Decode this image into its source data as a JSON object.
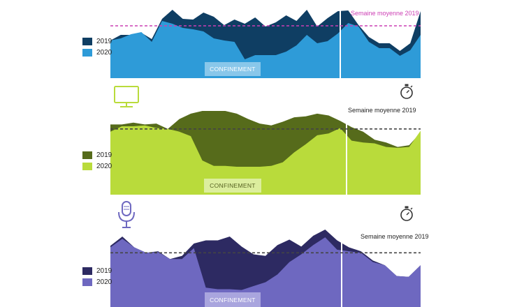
{
  "colors": {
    "panel1_2019": "#0f3e63",
    "panel1_2020": "#2e9bd8",
    "panel1_conf_bg": "#89c7ea",
    "panel1_line": "#cc3fb4",
    "panel2_2019": "#566b1b",
    "panel2_2020": "#b9db3b",
    "panel2_conf_bg": "#dcee9e",
    "panel2_line": "#444444",
    "panel3_2019": "#2d2a62",
    "panel3_2020": "#6e68c0",
    "panel3_conf_bg": "#a9a5de",
    "panel3_line": "#444444",
    "divider": "#ffffff"
  },
  "icons": {
    "tv": "tv-icon",
    "stopwatch": "stopwatch-icon",
    "microphone": "microphone-icon"
  },
  "chart_data": [
    {
      "type": "area",
      "legend": [
        "2019",
        "2020"
      ],
      "average_label": "Semaine moyenne 2019",
      "period_label": "CONFINEMENT",
      "ylim": [
        0,
        100
      ],
      "average": 75,
      "series": [
        {
          "name": "2019",
          "values": [
            54,
            62,
            62,
            65,
            56,
            85,
            98,
            85,
            84,
            94,
            88,
            76,
            84,
            78,
            87,
            74,
            80,
            90,
            82,
            98,
            74,
            86,
            96,
            97,
            76,
            59,
            50,
            50,
            39,
            50,
            96
          ]
        },
        {
          "name": "2020",
          "values": [
            54,
            57,
            63,
            66,
            52,
            82,
            78,
            72,
            70,
            67,
            57,
            54,
            52,
            27,
            33,
            33,
            33,
            38,
            47,
            62,
            50,
            53,
            64,
            79,
            74,
            52,
            43,
            43,
            32,
            40,
            62
          ]
        }
      ]
    },
    {
      "type": "area",
      "legend": [
        "2019",
        "2020"
      ],
      "average_label": "Semaine moyenne 2019",
      "period_label": "CONFINEMENT",
      "ylim": [
        0,
        100
      ],
      "average": 73,
      "series": [
        {
          "name": "2019",
          "values": [
            78,
            78,
            80,
            78,
            79,
            73,
            84,
            90,
            93,
            93,
            93,
            90,
            84,
            79,
            77,
            81,
            86,
            87,
            90,
            88,
            82,
            75,
            70,
            61,
            58,
            53,
            55,
            69
          ]
        },
        {
          "name": "2020",
          "values": [
            70,
            76,
            76,
            77,
            74,
            73,
            70,
            65,
            38,
            32,
            32,
            31,
            31,
            31,
            32,
            36,
            47,
            56,
            66,
            68,
            74,
            60,
            58,
            57,
            53,
            52,
            53,
            71
          ]
        }
      ]
    },
    {
      "type": "area",
      "legend": [
        "2019",
        "2020"
      ],
      "average_label": "Semaine moyenne 2019",
      "period_label": "CONFINEMENT",
      "ylim": [
        0,
        100
      ],
      "average": 70,
      "series": [
        {
          "name": "2019",
          "values": [
            79,
            91,
            77,
            70,
            72,
            62,
            66,
            82,
            86,
            86,
            91,
            78,
            68,
            66,
            80,
            87,
            78,
            92,
            100,
            86,
            77,
            72,
            60,
            54,
            40,
            39,
            54
          ]
        },
        {
          "name": "2020",
          "values": [
            77,
            88,
            77,
            70,
            71,
            62,
            62,
            76,
            25,
            23,
            23,
            22,
            27,
            32,
            42,
            58,
            68,
            80,
            90,
            74,
            72,
            70,
            58,
            54,
            40,
            39,
            54
          ]
        }
      ]
    }
  ]
}
